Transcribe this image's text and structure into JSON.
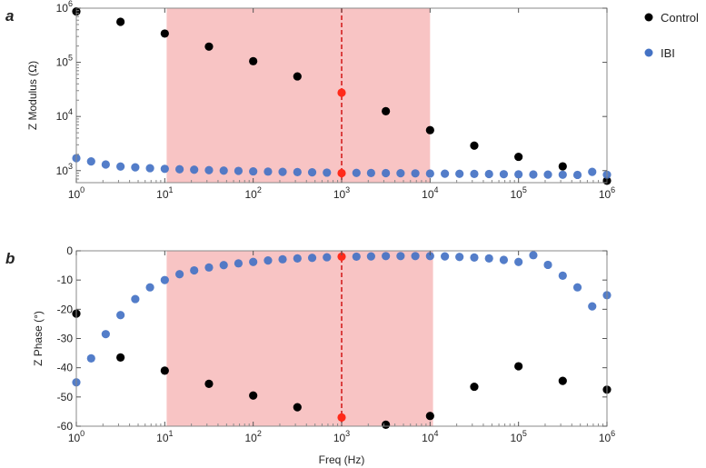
{
  "colors": {
    "control": "#000000",
    "ibi": "#4472C4",
    "highlight": "#F8C4C4",
    "marker_line": "#D42020",
    "marker_point": "#FF2A1A"
  },
  "legend": [
    {
      "name": "Control",
      "color": "#000000"
    },
    {
      "name": "IBI",
      "color": "#4472C4"
    }
  ],
  "chart_data": [
    {
      "panel": "a",
      "type": "scatter",
      "ylabel": "Z Modulus (Ω)",
      "xlabel": "",
      "xscale": "log",
      "yscale": "log",
      "xlim": [
        1,
        1000000
      ],
      "ylim": [
        600,
        1000000
      ],
      "highlight_band": [
        10.5,
        10000
      ],
      "vline_x": 1000,
      "x_ticks": [
        {
          "v": 1,
          "base": "10",
          "exp": "0"
        },
        {
          "v": 10,
          "base": "10",
          "exp": "1"
        },
        {
          "v": 100,
          "base": "10",
          "exp": "2"
        },
        {
          "v": 1000,
          "base": "10",
          "exp": "3"
        },
        {
          "v": 10000,
          "base": "10",
          "exp": "4"
        },
        {
          "v": 100000,
          "base": "10",
          "exp": "5"
        },
        {
          "v": 1000000,
          "base": "10",
          "exp": "6"
        }
      ],
      "y_ticks": [
        {
          "v": 1000,
          "base": "10",
          "exp": "3"
        },
        {
          "v": 10000,
          "base": "10",
          "exp": "4"
        },
        {
          "v": 100000,
          "base": "10",
          "exp": "5"
        },
        {
          "v": 1000000,
          "base": "10",
          "exp": "6"
        }
      ],
      "series": [
        {
          "name": "Control",
          "x": [
            1,
            3.16,
            10,
            31.6,
            100,
            316,
            3160,
            10000,
            31600,
            100000,
            316000,
            1000000
          ],
          "y": [
            870000,
            560000,
            340000,
            195000,
            105000,
            55000,
            12500,
            5600,
            2900,
            1800,
            1200,
            650
          ]
        },
        {
          "name": "IBI",
          "x": [
            1,
            1.47,
            2.15,
            3.16,
            4.64,
            6.81,
            10,
            14.7,
            21.5,
            31.6,
            46.4,
            68.1,
            100,
            147,
            215,
            316,
            464,
            681,
            1470,
            2150,
            3160,
            4640,
            6810,
            10000,
            14700,
            21500,
            31600,
            46400,
            68100,
            100000,
            147000,
            215000,
            316000,
            464000,
            681000,
            1000000
          ],
          "y": [
            1700,
            1480,
            1300,
            1190,
            1150,
            1110,
            1080,
            1060,
            1040,
            1020,
            1000,
            990,
            970,
            960,
            950,
            940,
            930,
            920,
            910,
            905,
            900,
            895,
            890,
            885,
            880,
            875,
            870,
            865,
            860,
            855,
            850,
            845,
            840,
            835,
            950,
            840
          ]
        },
        {
          "name": "Marker",
          "x": [
            1000,
            1000
          ],
          "y": [
            27500,
            900
          ]
        }
      ]
    },
    {
      "panel": "b",
      "type": "scatter",
      "ylabel": "Z Phase (°)",
      "xlabel": "Freq (Hz)",
      "xscale": "log",
      "yscale": "linear",
      "xlim": [
        1,
        1000000
      ],
      "ylim": [
        -60,
        0
      ],
      "highlight_band": [
        10.5,
        10800
      ],
      "vline_x": 1000,
      "x_ticks": [
        {
          "v": 1,
          "base": "10",
          "exp": "0"
        },
        {
          "v": 10,
          "base": "10",
          "exp": "1"
        },
        {
          "v": 100,
          "base": "10",
          "exp": "2"
        },
        {
          "v": 1000,
          "base": "10",
          "exp": "3"
        },
        {
          "v": 10000,
          "base": "10",
          "exp": "4"
        },
        {
          "v": 100000,
          "base": "10",
          "exp": "5"
        },
        {
          "v": 1000000,
          "base": "10",
          "exp": "6"
        }
      ],
      "y_ticks": [
        {
          "v": 0,
          "label": "0"
        },
        {
          "v": -10,
          "label": "-10"
        },
        {
          "v": -20,
          "label": "-20"
        },
        {
          "v": -30,
          "label": "-30"
        },
        {
          "v": -40,
          "label": "-40"
        },
        {
          "v": -50,
          "label": "-50"
        },
        {
          "v": -60,
          "label": "-60"
        }
      ],
      "series": [
        {
          "name": "Control",
          "x": [
            1,
            3.16,
            10,
            31.6,
            100,
            316,
            3160,
            10000,
            31600,
            100000,
            316000,
            1000000
          ],
          "y": [
            -21.5,
            -36.5,
            -41,
            -45.5,
            -49.5,
            -53.5,
            -59.5,
            -56.5,
            -46.5,
            -39.5,
            -44.5,
            -47.5
          ]
        },
        {
          "name": "IBI",
          "x": [
            1,
            1.47,
            2.15,
            3.16,
            4.64,
            6.81,
            10,
            14.7,
            21.5,
            31.6,
            46.4,
            68.1,
            100,
            147,
            215,
            316,
            464,
            681,
            1470,
            2150,
            3160,
            4640,
            6810,
            10000,
            14700,
            21500,
            31600,
            46400,
            68100,
            100000,
            147000,
            215000,
            316000,
            464000,
            681000,
            1000000
          ],
          "y": [
            -45,
            -36.8,
            -28.5,
            -22,
            -16.5,
            -12.5,
            -10,
            -8,
            -6.7,
            -5.7,
            -4.9,
            -4.3,
            -3.8,
            -3.3,
            -2.9,
            -2.6,
            -2.4,
            -2.2,
            -2,
            -1.9,
            -1.8,
            -1.8,
            -1.8,
            -1.8,
            -1.9,
            -2.1,
            -2.3,
            -2.6,
            -3.1,
            -3.8,
            -1.5,
            -4.8,
            -8.5,
            -12.5,
            -19,
            -15.2
          ]
        },
        {
          "name": "Marker",
          "x": [
            1000,
            1000
          ],
          "y": [
            -2,
            -57
          ]
        }
      ]
    }
  ]
}
